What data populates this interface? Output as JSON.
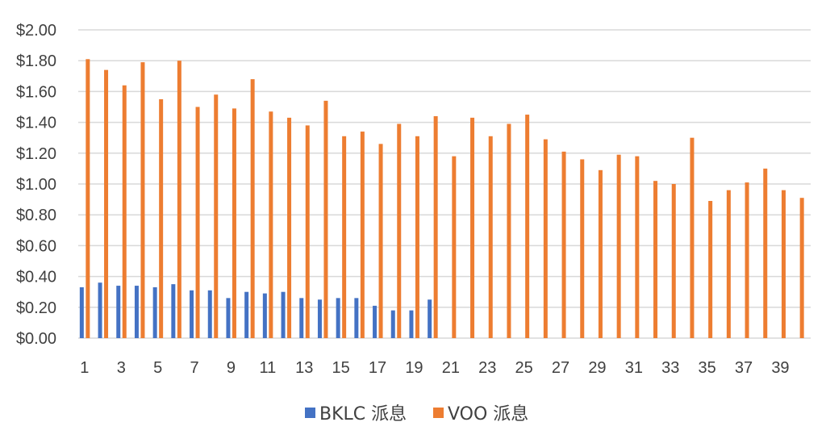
{
  "chart_data": {
    "type": "bar",
    "categories": [
      "1",
      "2",
      "3",
      "4",
      "5",
      "6",
      "7",
      "8",
      "9",
      "10",
      "11",
      "12",
      "13",
      "14",
      "15",
      "16",
      "17",
      "18",
      "19",
      "20",
      "21",
      "22",
      "23",
      "24",
      "25",
      "26",
      "27",
      "28",
      "29",
      "30",
      "31",
      "32",
      "33",
      "34",
      "35",
      "36",
      "37",
      "38",
      "39",
      "40"
    ],
    "x_tick_labels": [
      "1",
      "3",
      "5",
      "7",
      "9",
      "11",
      "13",
      "15",
      "17",
      "19",
      "21",
      "23",
      "25",
      "27",
      "29",
      "31",
      "33",
      "35",
      "37",
      "39"
    ],
    "y_tick_labels": [
      "$0.00",
      "$0.20",
      "$0.40",
      "$0.60",
      "$0.80",
      "$1.00",
      "$1.20",
      "$1.40",
      "$1.60",
      "$1.80",
      "$2.00"
    ],
    "ylim": [
      0,
      2.0
    ],
    "y_step": 0.2,
    "grid": true,
    "legend_position": "bottom",
    "series": [
      {
        "name": "BKLC 派息",
        "color": "#4472c4",
        "values": [
          0.33,
          0.36,
          0.34,
          0.34,
          0.33,
          0.35,
          0.31,
          0.31,
          0.26,
          0.3,
          0.29,
          0.3,
          0.26,
          0.25,
          0.26,
          0.26,
          0.21,
          0.18,
          0.18,
          0.25,
          null,
          null,
          null,
          null,
          null,
          null,
          null,
          null,
          null,
          null,
          null,
          null,
          null,
          null,
          null,
          null,
          null,
          null,
          null,
          null
        ]
      },
      {
        "name": "VOO 派息",
        "color": "#ed7d31",
        "values": [
          1.81,
          1.74,
          1.64,
          1.79,
          1.55,
          1.8,
          1.5,
          1.58,
          1.49,
          1.68,
          1.47,
          1.43,
          1.38,
          1.54,
          1.31,
          1.34,
          1.26,
          1.39,
          1.31,
          1.44,
          1.18,
          1.43,
          1.31,
          1.39,
          1.45,
          1.29,
          1.21,
          1.16,
          1.09,
          1.19,
          1.18,
          1.02,
          1.0,
          1.3,
          0.89,
          0.96,
          1.01,
          1.1,
          0.96,
          0.91
        ]
      }
    ]
  }
}
